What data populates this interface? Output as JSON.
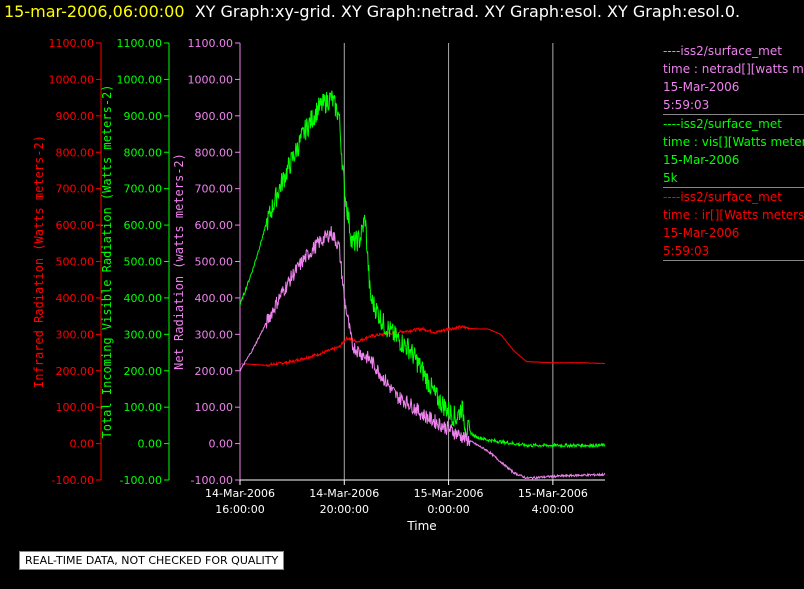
{
  "header": {
    "time": "15-mar-2006,06:00:00",
    "rest": "XY Graph:xy-grid.  XY Graph:netrad.  XY Graph:esol.  XY Graph:esol.0."
  },
  "notice": "REAL-TIME DATA, NOT CHECKED FOR QUALITY",
  "legend": [
    {
      "lines": [
        "----iss2/surface_met",
        "time : netrad[][watts met",
        "15-Mar-2006",
        "5:59:03"
      ],
      "color": "#ee82ee"
    },
    {
      "lines": [
        "----iss2/surface_met",
        "time : vis[][Watts meter",
        "15-Mar-2006",
        "5k"
      ],
      "color": "#00ff00"
    },
    {
      "lines": [
        "----iss2/surface_met",
        "time : ir[][Watts meters",
        "15-Mar-2006",
        "5:59:03"
      ],
      "color": "#ff0000"
    }
  ],
  "chart_data": {
    "type": "line",
    "xlabel": "Time",
    "x_ticks": [
      {
        "t": 16,
        "line1": "14-Mar-2006",
        "line2": "16:00:00"
      },
      {
        "t": 20,
        "line1": "14-Mar-2006",
        "line2": "20:00:00"
      },
      {
        "t": 24,
        "line1": "15-Mar-2006",
        "line2": "0:00:00"
      },
      {
        "t": 28,
        "line1": "15-Mar-2006",
        "line2": "4:00:00"
      }
    ],
    "x_range_hours": [
      16.0,
      30.0
    ],
    "grid_x": [
      20,
      24,
      28
    ],
    "y_ticks": [
      "1100.00",
      "1000.00",
      "900.00",
      "800.00",
      "700.00",
      "600.00",
      "500.00",
      "400.00",
      "300.00",
      "200.00",
      "100.00",
      "0.00",
      "-100.00"
    ],
    "ylim": [
      -100,
      1100
    ],
    "axes": [
      {
        "label": "Infrared Radiation (Watts meters-2)",
        "color": "#ff0000"
      },
      {
        "label": "Total Incoming Visible Radiation (Watts meters-2)",
        "color": "#00ff00"
      },
      {
        "label": "Net Radiation (watts meters-2)",
        "color": "#ee82ee"
      }
    ],
    "series": [
      {
        "color": "#ff0000",
        "noise": 4,
        "points": [
          [
            16.0,
            220
          ],
          [
            17.0,
            215
          ],
          [
            18.0,
            225
          ],
          [
            19.0,
            245
          ],
          [
            19.8,
            265
          ],
          [
            20.1,
            290
          ],
          [
            20.5,
            280
          ],
          [
            21.0,
            295
          ],
          [
            22.0,
            305
          ],
          [
            23.0,
            315
          ],
          [
            23.5,
            305
          ],
          [
            24.0,
            315
          ],
          [
            24.5,
            320
          ],
          [
            25.0,
            315
          ],
          [
            25.5,
            315
          ],
          [
            26.0,
            300
          ],
          [
            26.5,
            255
          ],
          [
            27.0,
            225
          ],
          [
            28.0,
            222
          ],
          [
            29.0,
            222
          ],
          [
            30.0,
            220
          ]
        ]
      },
      {
        "color": "#00ff00",
        "noise": 30,
        "points": [
          [
            16.0,
            380
          ],
          [
            16.5,
            480
          ],
          [
            17.0,
            600
          ],
          [
            17.5,
            700
          ],
          [
            18.0,
            780
          ],
          [
            18.5,
            860
          ],
          [
            19.0,
            920
          ],
          [
            19.5,
            950
          ],
          [
            19.8,
            900
          ],
          [
            20.0,
            700
          ],
          [
            20.3,
            550
          ],
          [
            20.6,
            560
          ],
          [
            20.8,
            620
          ],
          [
            21.0,
            400
          ],
          [
            21.5,
            330
          ],
          [
            22.0,
            290
          ],
          [
            22.5,
            260
          ],
          [
            23.0,
            200
          ],
          [
            23.5,
            130
          ],
          [
            24.0,
            90
          ],
          [
            24.3,
            70
          ],
          [
            24.5,
            100
          ],
          [
            24.7,
            40
          ],
          [
            25.0,
            20
          ],
          [
            25.5,
            10
          ],
          [
            26.0,
            5
          ],
          [
            27.0,
            -5
          ],
          [
            28.0,
            -5
          ],
          [
            29.0,
            -5
          ],
          [
            30.0,
            -5
          ]
        ]
      },
      {
        "color": "#ee82ee",
        "noise": 20,
        "points": [
          [
            16.0,
            200
          ],
          [
            16.5,
            260
          ],
          [
            17.0,
            330
          ],
          [
            17.5,
            400
          ],
          [
            18.0,
            460
          ],
          [
            18.5,
            510
          ],
          [
            19.0,
            550
          ],
          [
            19.5,
            580
          ],
          [
            19.8,
            540
          ],
          [
            20.0,
            400
          ],
          [
            20.3,
            270
          ],
          [
            20.6,
            250
          ],
          [
            21.0,
            230
          ],
          [
            21.5,
            180
          ],
          [
            22.0,
            130
          ],
          [
            22.5,
            110
          ],
          [
            23.0,
            80
          ],
          [
            23.5,
            60
          ],
          [
            24.0,
            40
          ],
          [
            24.5,
            20
          ],
          [
            25.0,
            0
          ],
          [
            25.5,
            -20
          ],
          [
            26.0,
            -50
          ],
          [
            26.5,
            -80
          ],
          [
            27.0,
            -95
          ],
          [
            28.0,
            -90
          ],
          [
            29.0,
            -87
          ],
          [
            30.0,
            -85
          ]
        ]
      }
    ]
  }
}
